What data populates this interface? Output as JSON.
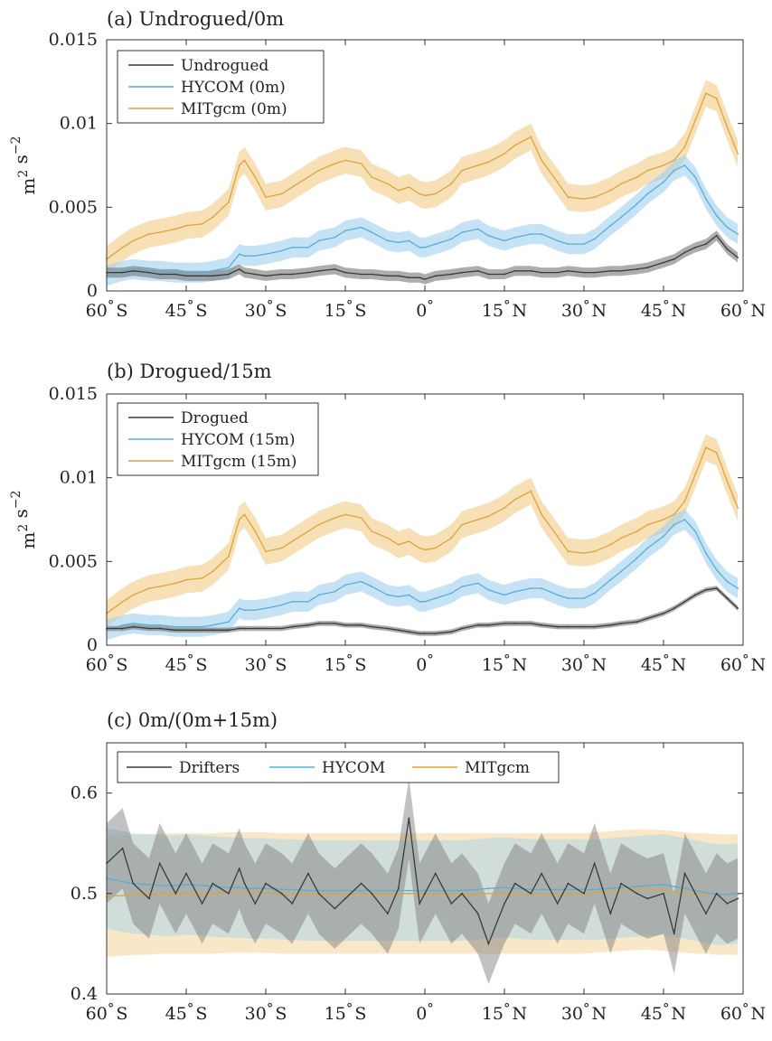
{
  "chart_data": [
    {
      "type": "line",
      "title": "(a) Undrogued/0m",
      "ylabel": "m² s⁻²",
      "xlabel": "",
      "xlim": [
        -60,
        60
      ],
      "ylim": [
        0,
        0.015
      ],
      "x_ticks": [
        -60,
        -45,
        -30,
        -15,
        0,
        15,
        30,
        45,
        60
      ],
      "x_tick_labels": [
        "60°S",
        "45°S",
        "30°S",
        "15°S",
        "0°",
        "15°N",
        "30°N",
        "45°N",
        "60°N"
      ],
      "y_ticks": [
        0,
        0.005,
        0.01,
        0.015
      ],
      "y_tick_labels": [
        "0",
        "0.005",
        "0.01",
        "0.015"
      ],
      "legend_position": "top-left",
      "x": [
        -60,
        -57,
        -55,
        -52,
        -50,
        -47,
        -45,
        -42,
        -40,
        -37,
        -35,
        -34,
        -32,
        -30,
        -27,
        -25,
        -22,
        -20,
        -17,
        -15,
        -12,
        -10,
        -7,
        -5,
        -3,
        -1,
        0,
        2,
        5,
        7,
        10,
        12,
        15,
        17,
        20,
        22,
        25,
        27,
        30,
        32,
        35,
        37,
        40,
        42,
        45,
        47,
        49,
        51,
        53,
        55,
        57,
        59
      ],
      "series": [
        {
          "name": "Undrogued",
          "color": "#3a3a3a",
          "band": 0.0003,
          "values": [
            0.0011,
            0.0011,
            0.0012,
            0.0011,
            0.001,
            0.001,
            0.0009,
            0.0009,
            0.0009,
            0.001,
            0.0013,
            0.0011,
            0.001,
            0.0009,
            0.001,
            0.001,
            0.0011,
            0.0012,
            0.0013,
            0.0011,
            0.001,
            0.001,
            0.0009,
            0.0009,
            0.0008,
            0.0008,
            0.0007,
            0.0009,
            0.001,
            0.0011,
            0.0012,
            0.001,
            0.001,
            0.0012,
            0.0012,
            0.0011,
            0.0011,
            0.0012,
            0.0011,
            0.0011,
            0.0012,
            0.0012,
            0.0013,
            0.0014,
            0.0017,
            0.0019,
            0.0023,
            0.0026,
            0.0028,
            0.0033,
            0.0025,
            0.002
          ]
        },
        {
          "name": "HYCOM (0m)",
          "color": "#5aaed6",
          "band": 0.0006,
          "values": [
            0.0009,
            0.0012,
            0.0013,
            0.0012,
            0.0012,
            0.0011,
            0.0011,
            0.0011,
            0.0012,
            0.0014,
            0.0022,
            0.0021,
            0.0021,
            0.0022,
            0.0024,
            0.0026,
            0.0026,
            0.003,
            0.0032,
            0.0036,
            0.0038,
            0.0035,
            0.003,
            0.0029,
            0.003,
            0.0026,
            0.0026,
            0.0028,
            0.0031,
            0.0035,
            0.0037,
            0.0033,
            0.003,
            0.0032,
            0.0034,
            0.0034,
            0.003,
            0.0028,
            0.0028,
            0.0031,
            0.0039,
            0.0044,
            0.0052,
            0.0058,
            0.0065,
            0.0072,
            0.0075,
            0.0068,
            0.0055,
            0.0045,
            0.0038,
            0.0034
          ]
        },
        {
          "name": "MITgcm (0m)",
          "color": "#dca53a",
          "band": 0.0008,
          "values": [
            0.0019,
            0.0026,
            0.003,
            0.0034,
            0.0035,
            0.0037,
            0.0039,
            0.004,
            0.0044,
            0.0053,
            0.0075,
            0.0078,
            0.0068,
            0.0056,
            0.0058,
            0.0062,
            0.0068,
            0.0072,
            0.0076,
            0.0078,
            0.0076,
            0.0068,
            0.0064,
            0.006,
            0.0062,
            0.0058,
            0.0057,
            0.0058,
            0.0064,
            0.0072,
            0.0075,
            0.0077,
            0.0082,
            0.0087,
            0.0092,
            0.0078,
            0.0065,
            0.0056,
            0.0055,
            0.0056,
            0.006,
            0.0064,
            0.0068,
            0.0072,
            0.0075,
            0.0078,
            0.0086,
            0.0102,
            0.0118,
            0.0115,
            0.0098,
            0.0082
          ]
        }
      ]
    },
    {
      "type": "line",
      "title": "(b) Drogued/15m",
      "ylabel": "m² s⁻²",
      "xlabel": "",
      "xlim": [
        -60,
        60
      ],
      "ylim": [
        0,
        0.015
      ],
      "x_ticks": [
        -60,
        -45,
        -30,
        -15,
        0,
        15,
        30,
        45,
        60
      ],
      "x_tick_labels": [
        "60°S",
        "45°S",
        "30°S",
        "15°S",
        "0°",
        "15°N",
        "30°N",
        "45°N",
        "60°N"
      ],
      "y_ticks": [
        0,
        0.005,
        0.01,
        0.015
      ],
      "y_tick_labels": [
        "0",
        "0.005",
        "0.01",
        "0.015"
      ],
      "legend_position": "top-left",
      "x": [
        -60,
        -57,
        -55,
        -52,
        -50,
        -47,
        -45,
        -42,
        -40,
        -37,
        -35,
        -34,
        -32,
        -30,
        -27,
        -25,
        -22,
        -20,
        -17,
        -15,
        -12,
        -10,
        -7,
        -5,
        -3,
        -1,
        0,
        2,
        5,
        7,
        10,
        12,
        15,
        17,
        20,
        22,
        25,
        27,
        30,
        32,
        35,
        37,
        40,
        42,
        45,
        47,
        49,
        51,
        53,
        55,
        57,
        59
      ],
      "series": [
        {
          "name": "Drogued",
          "color": "#3a3a3a",
          "band": 0.00015,
          "values": [
            0.001,
            0.001,
            0.0011,
            0.001,
            0.001,
            0.0009,
            0.0009,
            0.0009,
            0.0009,
            0.0009,
            0.001,
            0.001,
            0.001,
            0.001,
            0.001,
            0.0011,
            0.0012,
            0.0013,
            0.0013,
            0.0012,
            0.0012,
            0.0011,
            0.001,
            0.0009,
            0.0008,
            0.0007,
            0.0007,
            0.0007,
            0.0008,
            0.001,
            0.0012,
            0.0012,
            0.0013,
            0.0013,
            0.0013,
            0.0012,
            0.0011,
            0.0011,
            0.0011,
            0.0011,
            0.0012,
            0.0013,
            0.0014,
            0.0016,
            0.0019,
            0.0022,
            0.0026,
            0.003,
            0.0033,
            0.0034,
            0.0028,
            0.0022
          ]
        },
        {
          "name": "HYCOM (15m)",
          "color": "#5aaed6",
          "band": 0.0006,
          "values": [
            0.0009,
            0.0012,
            0.0013,
            0.0012,
            0.0012,
            0.0011,
            0.0011,
            0.0011,
            0.0012,
            0.0014,
            0.0022,
            0.0021,
            0.0021,
            0.0022,
            0.0024,
            0.0026,
            0.0026,
            0.003,
            0.0032,
            0.0036,
            0.0038,
            0.0035,
            0.003,
            0.0029,
            0.003,
            0.0026,
            0.0026,
            0.0028,
            0.0031,
            0.0035,
            0.0037,
            0.0033,
            0.003,
            0.0032,
            0.0034,
            0.0034,
            0.003,
            0.0028,
            0.0028,
            0.0031,
            0.0039,
            0.0044,
            0.0052,
            0.0058,
            0.0065,
            0.0072,
            0.0075,
            0.0068,
            0.0055,
            0.0045,
            0.0038,
            0.0034
          ]
        },
        {
          "name": "MITgcm (15m)",
          "color": "#dca53a",
          "band": 0.0008,
          "values": [
            0.0019,
            0.0026,
            0.003,
            0.0034,
            0.0035,
            0.0037,
            0.0039,
            0.004,
            0.0044,
            0.0053,
            0.0075,
            0.0078,
            0.0068,
            0.0056,
            0.0058,
            0.0062,
            0.0068,
            0.0072,
            0.0076,
            0.0078,
            0.0076,
            0.0068,
            0.0064,
            0.006,
            0.0062,
            0.0058,
            0.0057,
            0.0058,
            0.0064,
            0.0072,
            0.0075,
            0.0077,
            0.0082,
            0.0087,
            0.0092,
            0.0078,
            0.0065,
            0.0056,
            0.0055,
            0.0056,
            0.006,
            0.0064,
            0.0068,
            0.0072,
            0.0075,
            0.0078,
            0.0086,
            0.0102,
            0.0118,
            0.0115,
            0.0098,
            0.0082
          ]
        }
      ]
    },
    {
      "type": "line",
      "title": "(c) 0m/(0m+15m)",
      "ylabel": "",
      "xlabel": "",
      "xlim": [
        -60,
        60
      ],
      "ylim": [
        0.4,
        0.65
      ],
      "x_ticks": [
        -60,
        -45,
        -30,
        -15,
        0,
        15,
        30,
        45,
        60
      ],
      "x_tick_labels": [
        "60°S",
        "45°S",
        "30°S",
        "15°S",
        "0°",
        "15°N",
        "30°N",
        "45°N",
        "60°N"
      ],
      "y_ticks": [
        0.4,
        0.5,
        0.6
      ],
      "y_tick_labels": [
        "0.4",
        "0.5",
        "0.6"
      ],
      "legend_position": "top-left",
      "x": [
        -60,
        -57,
        -55,
        -52,
        -50,
        -47,
        -45,
        -42,
        -40,
        -37,
        -35,
        -34,
        -32,
        -30,
        -27,
        -25,
        -22,
        -20,
        -17,
        -15,
        -12,
        -10,
        -7,
        -5,
        -3,
        -1,
        0,
        2,
        5,
        7,
        10,
        12,
        15,
        17,
        20,
        22,
        25,
        27,
        30,
        32,
        35,
        37,
        40,
        42,
        45,
        47,
        49,
        51,
        53,
        55,
        57,
        59
      ],
      "series": [
        {
          "name": "Drifters",
          "color": "#3a3a3a",
          "band": 0.04,
          "values": [
            0.53,
            0.545,
            0.51,
            0.495,
            0.53,
            0.5,
            0.52,
            0.49,
            0.51,
            0.5,
            0.525,
            0.51,
            0.49,
            0.51,
            0.5,
            0.49,
            0.52,
            0.5,
            0.485,
            0.495,
            0.51,
            0.5,
            0.48,
            0.505,
            0.575,
            0.49,
            0.5,
            0.52,
            0.49,
            0.5,
            0.48,
            0.45,
            0.49,
            0.51,
            0.5,
            0.52,
            0.49,
            0.51,
            0.5,
            0.53,
            0.48,
            0.51,
            0.5,
            0.495,
            0.5,
            0.46,
            0.52,
            0.5,
            0.48,
            0.5,
            0.49,
            0.495
          ]
        },
        {
          "name": "HYCOM",
          "color": "#5aaed6",
          "band": 0.05,
          "values": [
            0.515,
            0.512,
            0.51,
            0.509,
            0.508,
            0.508,
            0.509,
            0.508,
            0.507,
            0.506,
            0.506,
            0.505,
            0.505,
            0.505,
            0.504,
            0.504,
            0.503,
            0.503,
            0.503,
            0.503,
            0.503,
            0.503,
            0.503,
            0.503,
            0.503,
            0.503,
            0.503,
            0.503,
            0.503,
            0.503,
            0.504,
            0.505,
            0.506,
            0.505,
            0.504,
            0.504,
            0.504,
            0.504,
            0.504,
            0.504,
            0.505,
            0.506,
            0.507,
            0.508,
            0.509,
            0.507,
            0.505,
            0.503,
            0.501,
            0.499,
            0.499,
            0.5
          ]
        },
        {
          "name": "MITgcm",
          "color": "#dca53a",
          "band": 0.06,
          "values": [
            0.497,
            0.498,
            0.499,
            0.499,
            0.5,
            0.5,
            0.5,
            0.5,
            0.5,
            0.501,
            0.501,
            0.501,
            0.501,
            0.501,
            0.5,
            0.5,
            0.5,
            0.5,
            0.5,
            0.5,
            0.5,
            0.5,
            0.5,
            0.5,
            0.5,
            0.5,
            0.5,
            0.5,
            0.5,
            0.5,
            0.5,
            0.5,
            0.5,
            0.5,
            0.5,
            0.5,
            0.5,
            0.5,
            0.5,
            0.501,
            0.502,
            0.503,
            0.504,
            0.504,
            0.503,
            0.502,
            0.501,
            0.5,
            0.5,
            0.499,
            0.499,
            0.499
          ]
        }
      ]
    }
  ]
}
